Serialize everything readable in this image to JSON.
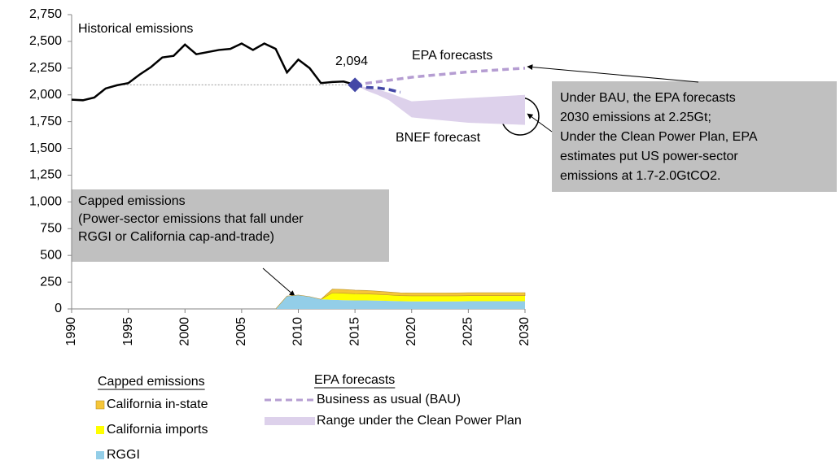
{
  "chart_data": {
    "type": "line",
    "xlim": [
      1990,
      2030
    ],
    "xticks": [
      1990,
      1995,
      2000,
      2005,
      2010,
      2015,
      2020,
      2025,
      2030
    ],
    "ylim": [
      0,
      2750
    ],
    "yticks": [
      0,
      250,
      500,
      750,
      {
        "value": 1000,
        "label": "1,000"
      },
      {
        "value": 1250,
        "label": "1,250"
      },
      {
        "value": 1500,
        "label": "1,500"
      },
      {
        "value": 1750,
        "label": "1,750"
      },
      {
        "value": 2000,
        "label": "2,000"
      },
      {
        "value": 2250,
        "label": "2,250"
      },
      {
        "value": 2500,
        "label": "2,500"
      },
      {
        "value": 2750,
        "label": "2,750"
      }
    ],
    "series": [
      {
        "name": "Historical emissions",
        "kind": "line",
        "color": "#000000",
        "x": [
          1990,
          1991,
          1992,
          1993,
          1994,
          1995,
          1996,
          1997,
          1998,
          1999,
          2000,
          2001,
          2002,
          2003,
          2004,
          2005,
          2006,
          2007,
          2008,
          2009,
          2010,
          2011,
          2012,
          2013,
          2014,
          2015
        ],
        "values": [
          1955,
          1950,
          1975,
          2060,
          2090,
          2110,
          2190,
          2260,
          2350,
          2365,
          2470,
          2380,
          2400,
          2420,
          2430,
          2480,
          2420,
          2480,
          2430,
          2210,
          2330,
          2250,
          2110,
          2120,
          2125,
          2094
        ]
      },
      {
        "name": "BNEF forecast",
        "kind": "dashed",
        "color": "#4347a6",
        "x": [
          2015,
          2016,
          2017,
          2018,
          2019
        ],
        "values": [
          2094,
          2070,
          2065,
          2050,
          2025
        ]
      },
      {
        "name": "Business as usual (BAU)",
        "label": "EPA forecasts",
        "kind": "dashed",
        "color": "#b59dd2",
        "x": [
          2015,
          2020,
          2025,
          2030
        ],
        "values": [
          2094,
          2165,
          2215,
          2250
        ]
      },
      {
        "name": "Range under the Clean Power Plan",
        "kind": "range",
        "color": "#ddd1eb",
        "x": [
          2015,
          2016,
          2017,
          2018,
          2019,
          2020,
          2025,
          2030
        ],
        "high": [
          2094,
          2070,
          2050,
          2020,
          1980,
          1940,
          1970,
          2000
        ],
        "low": [
          2094,
          2040,
          2000,
          1950,
          1870,
          1790,
          1740,
          1720
        ]
      },
      {
        "name": "California in-state",
        "kind": "stacked-area",
        "color": "#f6c638",
        "x": [
          2008,
          2009,
          2010,
          2011,
          2012,
          2013,
          2014,
          2015,
          2016,
          2017,
          2018,
          2019,
          2020,
          2021,
          2022,
          2023,
          2024,
          2025,
          2026,
          2027,
          2028,
          2029,
          2030
        ],
        "values": [
          0,
          0,
          0,
          0,
          0,
          35,
          35,
          33,
          32,
          30,
          28,
          27,
          27,
          27,
          27,
          27,
          28,
          28,
          28,
          28,
          28,
          28,
          28
        ]
      },
      {
        "name": "California imports",
        "kind": "stacked-area",
        "color": "#ffff00",
        "x": [
          2008,
          2009,
          2010,
          2011,
          2012,
          2013,
          2014,
          2015,
          2016,
          2017,
          2018,
          2019,
          2020,
          2021,
          2022,
          2023,
          2024,
          2025,
          2026,
          2027,
          2028,
          2029,
          2030
        ],
        "values": [
          0,
          0,
          0,
          0,
          0,
          65,
          65,
          62,
          60,
          58,
          55,
          52,
          52,
          52,
          52,
          52,
          52,
          52,
          52,
          52,
          52,
          52,
          52
        ]
      },
      {
        "name": "RGGI",
        "kind": "stacked-area",
        "color": "#93cee8",
        "x": [
          2008,
          2009,
          2010,
          2011,
          2012,
          2013,
          2014,
          2015,
          2016,
          2017,
          2018,
          2019,
          2020,
          2021,
          2022,
          2023,
          2024,
          2025,
          2026,
          2027,
          2028,
          2029,
          2030
        ],
        "values": [
          0,
          120,
          130,
          115,
          90,
          85,
          82,
          80,
          80,
          78,
          75,
          72,
          70,
          70,
          70,
          70,
          70,
          72,
          72,
          72,
          72,
          72,
          72
        ]
      }
    ],
    "highlight": {
      "x": 2015,
      "values": [
        2094
      ],
      "value_labels": [
        "2,094"
      ],
      "color": "#4347a6"
    },
    "reference": {
      "x": [
        1994,
        2015
      ],
      "value": 2094
    },
    "legend_titles": [
      "Capped emissions",
      "EPA forecasts"
    ],
    "annotations": [
      {
        "lines": [
          "Under BAU, the EPA forecasts",
          "2030 emissions at 2.25Gt;",
          "Under the Clean Power Plan, EPA",
          "estimates put US power-sector",
          "emissions at 1.7-2.0GtCO2."
        ]
      },
      {
        "lines": [
          "Capped emissions",
          "(Power-sector emissions that fall under",
          "RGGI or California cap-and-trade)"
        ]
      }
    ]
  }
}
